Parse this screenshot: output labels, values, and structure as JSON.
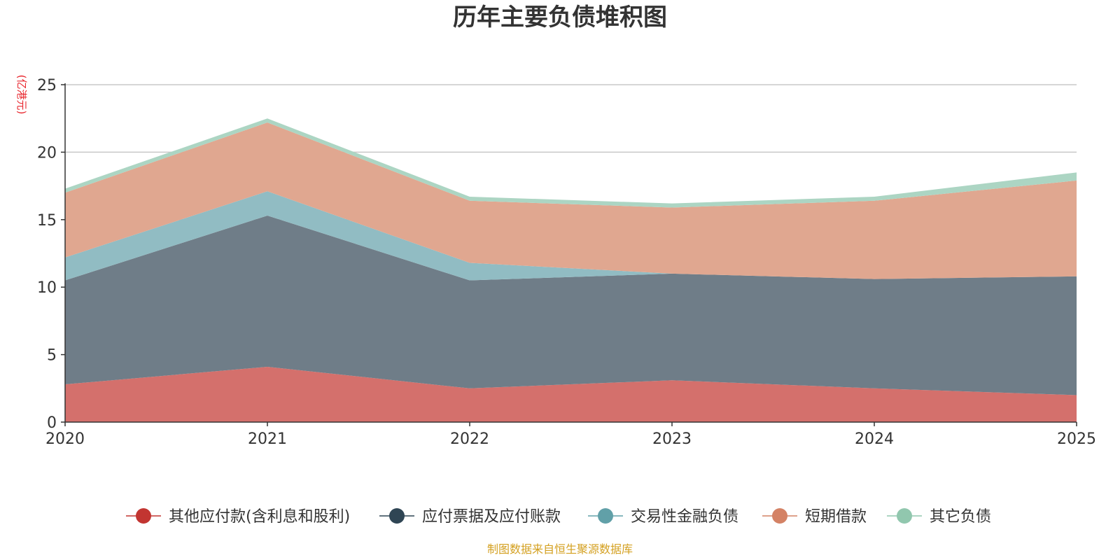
{
  "chart_data": {
    "type": "area",
    "stacked": true,
    "title": "历年主要负债堆积图",
    "ylabel": "(亿港元)",
    "xlabel": "",
    "x": [
      "2020",
      "2021",
      "2022",
      "2023",
      "2024",
      "2025"
    ],
    "ylim": [
      0,
      25
    ],
    "yticks": [
      "0",
      "5",
      "10",
      "15",
      "20",
      "25"
    ],
    "grid": true,
    "legend_position": "bottom",
    "series": [
      {
        "name": "其他应付款(含利息和股利)",
        "values": [
          2.8,
          4.1,
          2.5,
          3.1,
          2.5,
          2.0
        ],
        "color": "#c23531",
        "fill": "#d4706c"
      },
      {
        "name": "应付票据及应付账款",
        "values": [
          7.7,
          11.2,
          8.0,
          7.9,
          8.1,
          8.8
        ],
        "color": "#2f4554",
        "fill": "#6f7d88"
      },
      {
        "name": "交易性金融负债",
        "values": [
          1.7,
          1.8,
          1.3,
          0.0,
          0.0,
          0.0
        ],
        "color": "#61a0a8",
        "fill": "#91bcc3"
      },
      {
        "name": "短期借款",
        "values": [
          4.8,
          5.1,
          4.6,
          4.9,
          5.8,
          7.1
        ],
        "color": "#d48265",
        "fill": "#e0a790"
      },
      {
        "name": "其它负债",
        "values": [
          0.3,
          0.3,
          0.3,
          0.3,
          0.3,
          0.6
        ],
        "color": "#91c7ae",
        "fill": "#acd5c3"
      }
    ],
    "source": "制图数据来自恒生聚源数据库"
  }
}
